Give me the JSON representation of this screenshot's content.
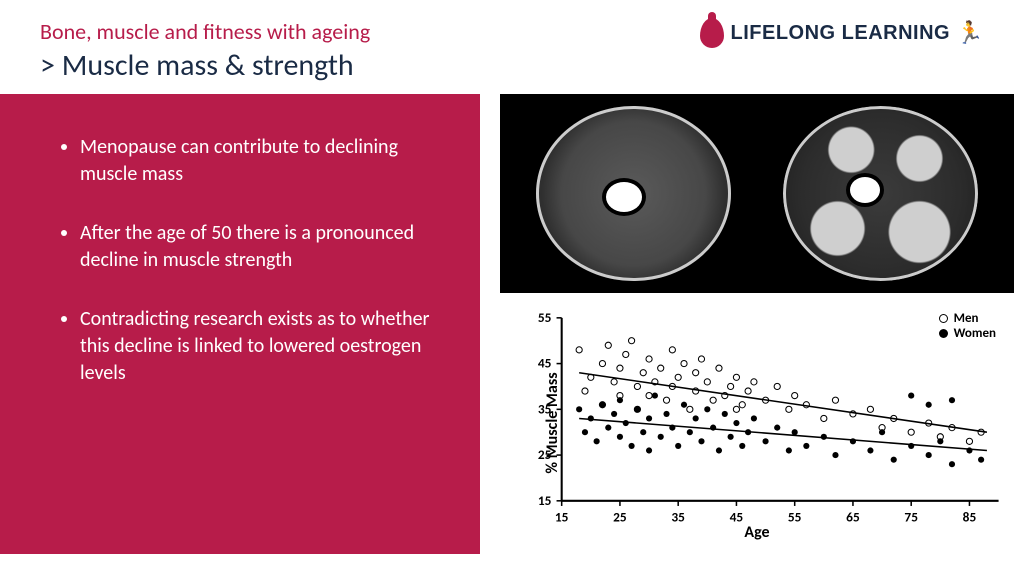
{
  "header": {
    "supertitle": "Bone, muscle and fitness with ageing",
    "subtitle": "> Muscle mass & strength",
    "logo_text": "LIFELONG LEARNING"
  },
  "bullets": [
    "Menopause can contribute to declining muscle mass",
    "After the age of 50 there is a pronounced decline in muscle strength",
    "Contradicting research exists as to whether this decline is linked to lowered oestrogen levels"
  ],
  "colors": {
    "brand_red": "#b71c4a",
    "dark_navy": "#1a2b45",
    "white": "#ffffff",
    "black": "#000000"
  },
  "ct_images": {
    "description": "Two thigh cross-section CT/MRI images on black background",
    "background_color": "#000000",
    "slice_count": 2
  },
  "chart": {
    "type": "scatter",
    "xlabel": "Age",
    "ylabel": "% Muscle Mass",
    "xlim": [
      15,
      90
    ],
    "ylim": [
      15,
      55
    ],
    "xticks": [
      15,
      25,
      35,
      45,
      55,
      65,
      75,
      85
    ],
    "yticks": [
      15,
      25,
      35,
      45,
      55
    ],
    "axis_fontsize": 16,
    "tick_fontsize": 12,
    "tick_fontweight": "bold",
    "background_color": "#ffffff",
    "marker_size": 3,
    "line_color": "#000000",
    "line_width": 1.5,
    "series": [
      {
        "name": "Men",
        "marker": "open-circle",
        "regression": {
          "x1": 18,
          "y1": 43,
          "x2": 88,
          "y2": 30
        },
        "points": [
          [
            18,
            48
          ],
          [
            19,
            39
          ],
          [
            20,
            42
          ],
          [
            22,
            45
          ],
          [
            22,
            36
          ],
          [
            23,
            49
          ],
          [
            24,
            41
          ],
          [
            25,
            44
          ],
          [
            25,
            38
          ],
          [
            26,
            47
          ],
          [
            27,
            50
          ],
          [
            28,
            40
          ],
          [
            28,
            35
          ],
          [
            29,
            43
          ],
          [
            30,
            46
          ],
          [
            30,
            38
          ],
          [
            31,
            41
          ],
          [
            32,
            44
          ],
          [
            33,
            37
          ],
          [
            34,
            48
          ],
          [
            34,
            40
          ],
          [
            35,
            42
          ],
          [
            36,
            45
          ],
          [
            37,
            35
          ],
          [
            38,
            43
          ],
          [
            38,
            39
          ],
          [
            39,
            46
          ],
          [
            40,
            41
          ],
          [
            41,
            37
          ],
          [
            42,
            44
          ],
          [
            43,
            38
          ],
          [
            44,
            40
          ],
          [
            45,
            42
          ],
          [
            45,
            35
          ],
          [
            46,
            36
          ],
          [
            47,
            39
          ],
          [
            48,
            41
          ],
          [
            50,
            37
          ],
          [
            52,
            40
          ],
          [
            54,
            35
          ],
          [
            55,
            38
          ],
          [
            57,
            36
          ],
          [
            60,
            33
          ],
          [
            62,
            37
          ],
          [
            65,
            34
          ],
          [
            68,
            35
          ],
          [
            70,
            31
          ],
          [
            72,
            33
          ],
          [
            75,
            30
          ],
          [
            78,
            32
          ],
          [
            80,
            29
          ],
          [
            82,
            31
          ],
          [
            85,
            28
          ],
          [
            87,
            30
          ]
        ]
      },
      {
        "name": "Women",
        "marker": "filled-circle",
        "regression": {
          "x1": 18,
          "y1": 33,
          "x2": 88,
          "y2": 26
        },
        "points": [
          [
            18,
            35
          ],
          [
            19,
            30
          ],
          [
            20,
            33
          ],
          [
            21,
            28
          ],
          [
            22,
            36
          ],
          [
            23,
            31
          ],
          [
            24,
            34
          ],
          [
            25,
            29
          ],
          [
            25,
            37
          ],
          [
            26,
            32
          ],
          [
            27,
            27
          ],
          [
            28,
            35
          ],
          [
            29,
            30
          ],
          [
            30,
            33
          ],
          [
            30,
            26
          ],
          [
            31,
            38
          ],
          [
            32,
            29
          ],
          [
            33,
            34
          ],
          [
            34,
            31
          ],
          [
            35,
            27
          ],
          [
            36,
            36
          ],
          [
            37,
            30
          ],
          [
            38,
            33
          ],
          [
            39,
            28
          ],
          [
            40,
            35
          ],
          [
            41,
            31
          ],
          [
            42,
            26
          ],
          [
            43,
            34
          ],
          [
            44,
            29
          ],
          [
            45,
            32
          ],
          [
            46,
            27
          ],
          [
            47,
            30
          ],
          [
            48,
            33
          ],
          [
            50,
            28
          ],
          [
            52,
            31
          ],
          [
            54,
            26
          ],
          [
            55,
            30
          ],
          [
            57,
            27
          ],
          [
            60,
            29
          ],
          [
            62,
            25
          ],
          [
            65,
            28
          ],
          [
            68,
            26
          ],
          [
            70,
            30
          ],
          [
            72,
            24
          ],
          [
            75,
            27
          ],
          [
            78,
            25
          ],
          [
            80,
            28
          ],
          [
            82,
            23
          ],
          [
            85,
            26
          ],
          [
            87,
            24
          ],
          [
            75,
            38
          ],
          [
            78,
            36
          ],
          [
            82,
            37
          ]
        ]
      }
    ],
    "legend": {
      "position": "top-right",
      "items": [
        {
          "label": "Men",
          "marker": "open-circle"
        },
        {
          "label": "Women",
          "marker": "filled-circle"
        }
      ]
    }
  }
}
